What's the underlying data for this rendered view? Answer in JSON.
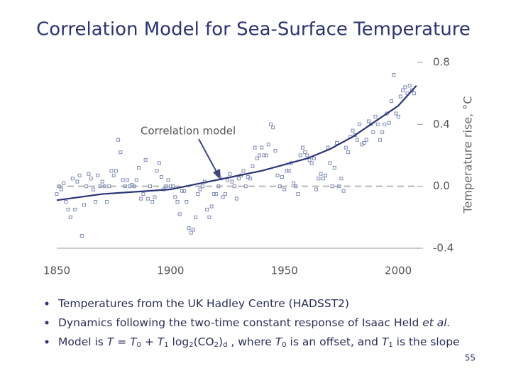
{
  "chart_data": {
    "type": "scatter",
    "title": "Correlation Model for Sea-Surface Temperature",
    "y_label": "Temperature rise, °C",
    "annotation": "Correlation model",
    "xlim": [
      1850,
      2009
    ],
    "xticks": [
      1850,
      1900,
      1950,
      2000
    ],
    "ylim": [
      -0.4,
      0.8
    ],
    "yticks": [
      -0.4,
      {
        "value": 0,
        "label": "0.0"
      },
      0.4,
      0.8
    ],
    "zero_line": true,
    "series": [
      {
        "type": "scatter",
        "color": "#7f8bb5",
        "x": [
          1850,
          1851,
          1852,
          1853,
          1854,
          1855,
          1856,
          1857,
          1858,
          1859,
          1860,
          1861,
          1862,
          1863,
          1864,
          1865,
          1866,
          1867,
          1868,
          1869,
          1870,
          1871,
          1872,
          1873,
          1874,
          1875,
          1876,
          1877,
          1878,
          1879,
          1880,
          1881,
          1882,
          1883,
          1884,
          1885,
          1886,
          1887,
          1888,
          1889,
          1890,
          1891,
          1892,
          1893,
          1894,
          1895,
          1896,
          1897,
          1898,
          1899,
          1900,
          1901,
          1902,
          1903,
          1904,
          1905,
          1906,
          1907,
          1908,
          1909,
          1910,
          1911,
          1912,
          1913,
          1914,
          1915,
          1916,
          1917,
          1918,
          1919,
          1920,
          1921,
          1922,
          1923,
          1924,
          1925,
          1926,
          1927,
          1928,
          1929,
          1930,
          1931,
          1932,
          1933,
          1934,
          1935,
          1936,
          1937,
          1938,
          1939,
          1940,
          1941,
          1942,
          1943,
          1944,
          1945,
          1946,
          1947,
          1948,
          1949,
          1950,
          1951,
          1952,
          1953,
          1954,
          1955,
          1956,
          1957,
          1958,
          1959,
          1960,
          1961,
          1962,
          1963,
          1964,
          1965,
          1966,
          1967,
          1968,
          1969,
          1970,
          1971,
          1972,
          1973,
          1974,
          1975,
          1976,
          1977,
          1978,
          1979,
          1980,
          1981,
          1982,
          1983,
          1984,
          1985,
          1986,
          1987,
          1988,
          1989,
          1990,
          1991,
          1992,
          1993,
          1994,
          1995,
          1996,
          1997,
          1998,
          1999,
          2000,
          2001,
          2002,
          2003,
          2004,
          2005,
          2006,
          2007
        ],
        "values": [
          -0.05,
          0.0,
          -0.02,
          0.02,
          -0.1,
          -0.15,
          -0.2,
          0.05,
          -0.15,
          0.03,
          0.07,
          -0.32,
          -0.12,
          0.0,
          0.08,
          0.05,
          -0.02,
          -0.1,
          0.07,
          0.0,
          0.03,
          0.0,
          -0.1,
          0.0,
          0.1,
          0.07,
          0.1,
          0.3,
          0.22,
          0.04,
          0.0,
          0.04,
          0.0,
          0.01,
          0.0,
          0.04,
          0.12,
          -0.08,
          -0.05,
          0.17,
          -0.08,
          0.0,
          -0.1,
          -0.07,
          0.1,
          0.15,
          0.06,
          -0.02,
          0.0,
          0.04,
          0.0,
          0.0,
          -0.07,
          -0.1,
          -0.18,
          -0.03,
          -0.03,
          -0.1,
          -0.27,
          -0.3,
          -0.28,
          -0.2,
          -0.05,
          -0.02,
          0.0,
          0.03,
          -0.15,
          -0.2,
          -0.13,
          -0.05,
          -0.05,
          0.0,
          0.05,
          -0.07,
          -0.05,
          0.04,
          0.08,
          0.03,
          0.0,
          -0.08,
          0.05,
          0.07,
          0.1,
          0.0,
          0.06,
          0.05,
          0.13,
          0.25,
          0.18,
          0.2,
          0.25,
          0.2,
          0.2,
          0.27,
          0.4,
          0.38,
          0.23,
          0.07,
          0.0,
          0.06,
          -0.02,
          0.1,
          0.1,
          0.15,
          0.02,
          0.0,
          -0.05,
          0.2,
          0.25,
          0.22,
          0.2,
          0.17,
          0.15,
          0.18,
          -0.02,
          0.05,
          0.08,
          0.05,
          0.07,
          0.25,
          0.15,
          0.0,
          0.12,
          0.28,
          0.0,
          0.05,
          -0.03,
          0.25,
          0.22,
          0.32,
          0.36,
          0.33,
          0.3,
          0.4,
          0.27,
          0.28,
          0.3,
          0.42,
          0.4,
          0.35,
          0.45,
          0.4,
          0.3,
          0.35,
          0.4,
          0.47,
          0.41,
          0.55,
          0.72,
          0.47,
          0.45,
          0.58,
          0.62,
          0.64,
          0.6,
          0.65,
          0.62,
          0.6
        ]
      },
      {
        "type": "line",
        "color": "#2b3478",
        "x": [
          1850,
          1860,
          1870,
          1880,
          1890,
          1900,
          1910,
          1920,
          1930,
          1940,
          1950,
          1960,
          1970,
          1980,
          1990,
          2000,
          2008
        ],
        "values": [
          -0.09,
          -0.07,
          -0.05,
          -0.04,
          -0.03,
          -0.02,
          0.01,
          0.04,
          0.07,
          0.1,
          0.14,
          0.18,
          0.24,
          0.32,
          0.42,
          0.52,
          0.65
        ]
      }
    ]
  },
  "bullets": [
    [
      {
        "text": "Temperatures from the UK Hadley Centre (HADSST2)"
      }
    ],
    [
      {
        "text": "Dynamics following the two-time constant response of Isaac Held "
      },
      {
        "text": "et al.",
        "italic": true
      }
    ],
    [
      {
        "text": "Model is "
      },
      {
        "text": "T",
        "italic": true
      },
      {
        "text": " = "
      },
      {
        "text": "T",
        "italic": true
      },
      {
        "text": "0",
        "sub": true
      },
      {
        "text": " + "
      },
      {
        "text": "T",
        "italic": true
      },
      {
        "text": "1",
        "sub": true
      },
      {
        "text": " log"
      },
      {
        "text": "2",
        "sub": true
      },
      {
        "text": "(CO"
      },
      {
        "text": "2",
        "sub": true
      },
      {
        "text": ")"
      },
      {
        "text": "d",
        "sub": true
      },
      {
        "text": " , where "
      },
      {
        "text": "T",
        "italic": true
      },
      {
        "text": "0",
        "sub": true
      },
      {
        "text": " is an offset, and "
      },
      {
        "text": "T",
        "italic": true
      },
      {
        "text": "1",
        "sub": true
      },
      {
        "text": " is the slope"
      }
    ]
  ],
  "page_number": "55"
}
